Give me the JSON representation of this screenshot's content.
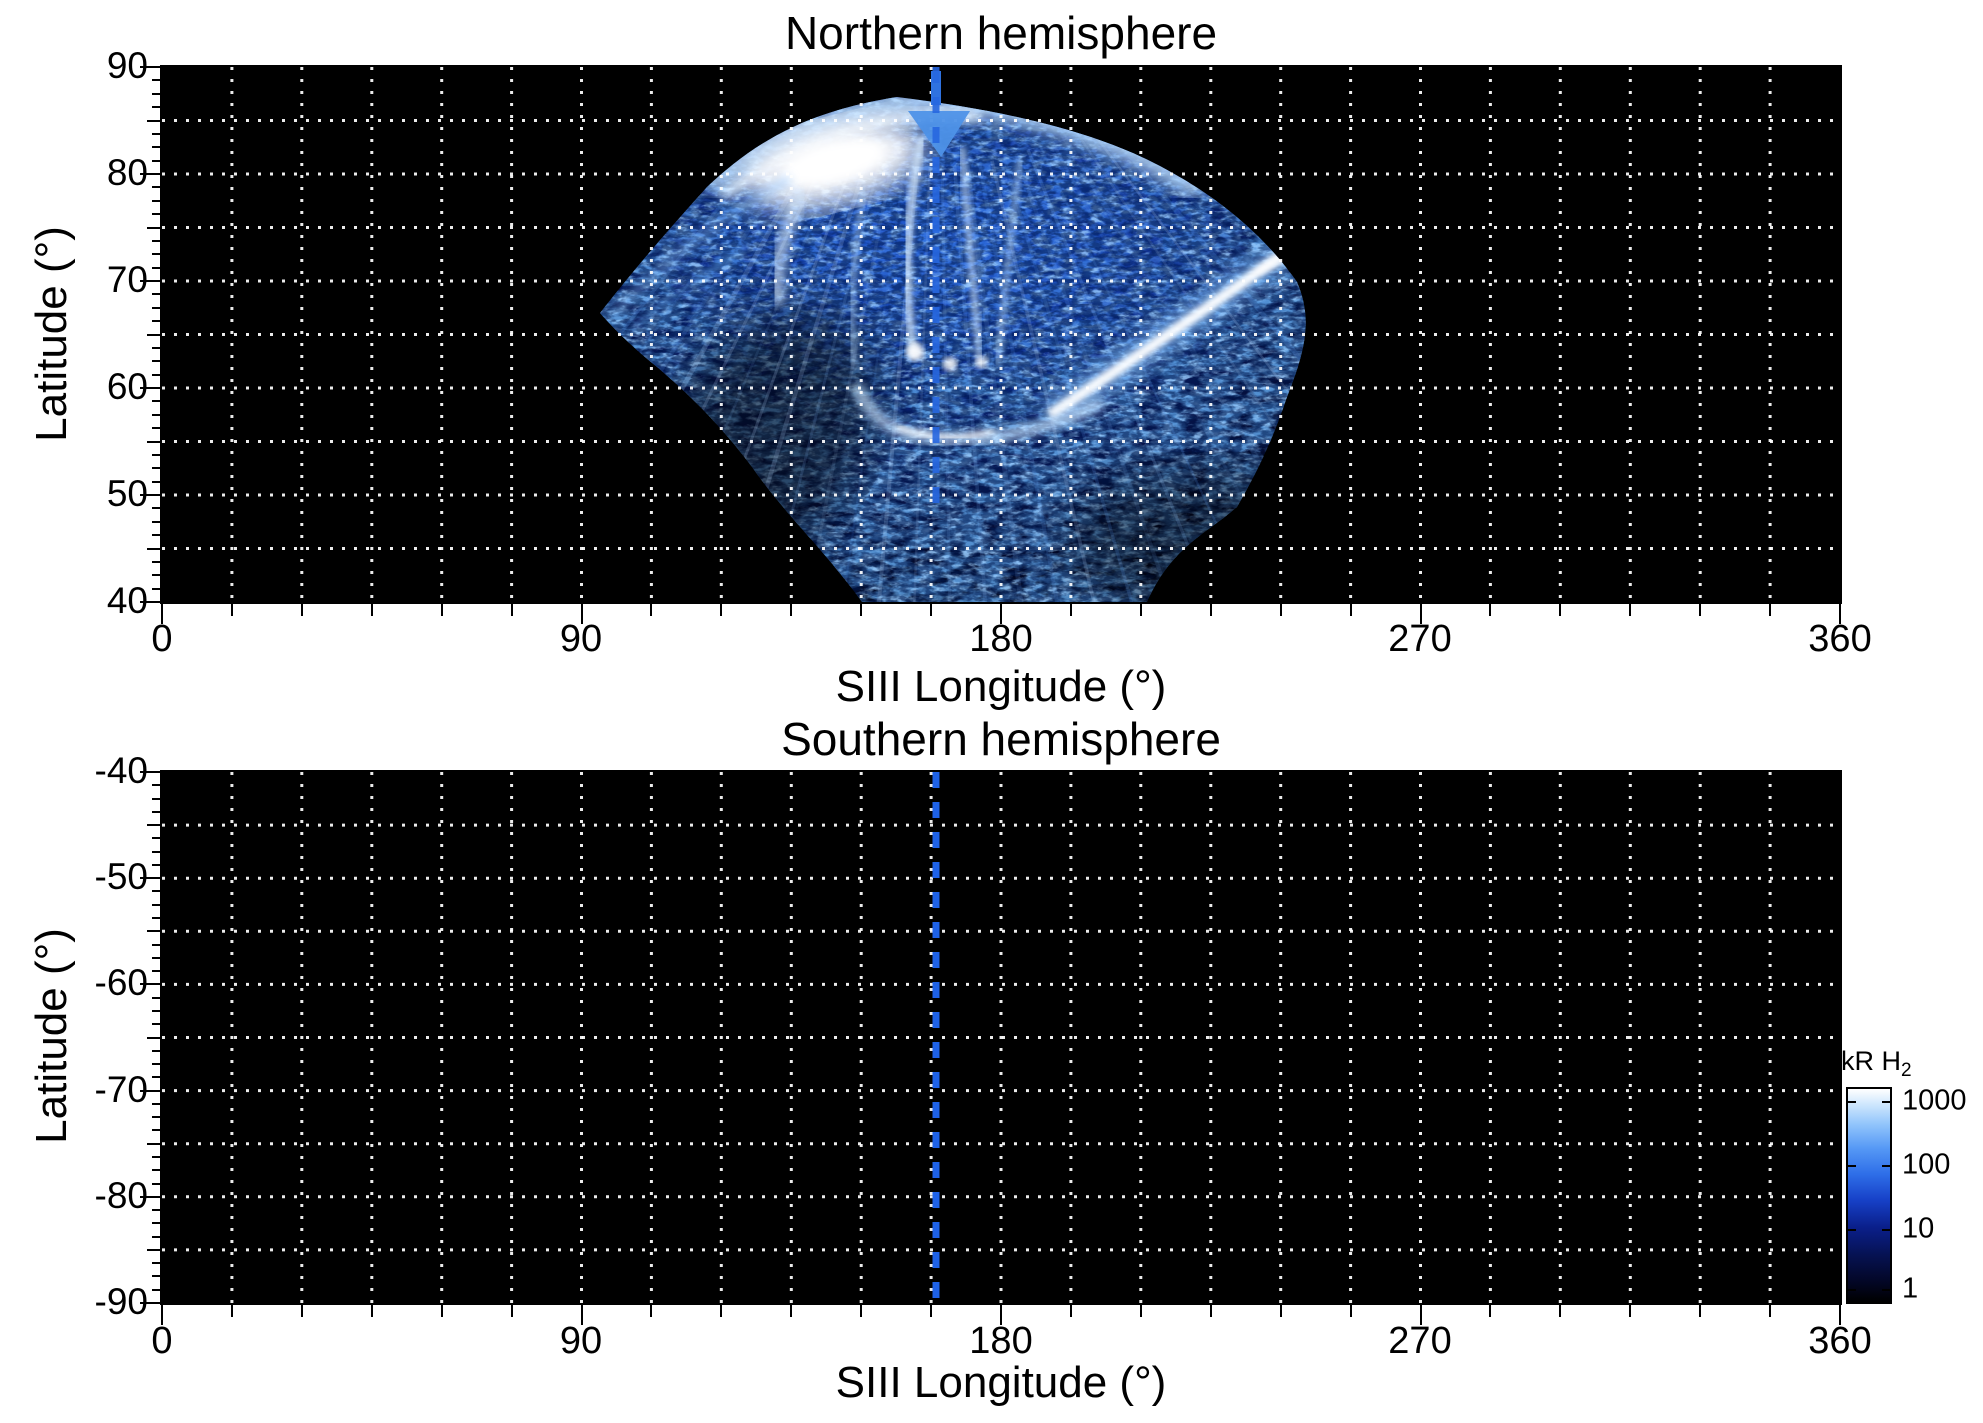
{
  "panels": {
    "north": {
      "title": "Northern hemisphere",
      "xlabel": "SIII Longitude (°)",
      "ylabel": "Latitude (°)",
      "x_tick_labels": [
        "0",
        "90",
        "180",
        "270",
        "360"
      ],
      "y_tick_labels": [
        "90",
        "80",
        "70",
        "60",
        "50",
        "40"
      ]
    },
    "south": {
      "title": "Southern hemisphere",
      "xlabel": "SIII Longitude (°)",
      "ylabel": "Latitude (°)",
      "x_tick_labels": [
        "0",
        "90",
        "180",
        "270",
        "360"
      ],
      "y_tick_labels": [
        "-40",
        "-50",
        "-60",
        "-70",
        "-80",
        "-90"
      ]
    }
  },
  "colorbar": {
    "title": "kR H",
    "title_sub": "2",
    "tick_labels": [
      "1000",
      "100",
      "10",
      "1"
    ]
  },
  "chart_data": [
    {
      "type": "heatmap",
      "title": "Northern hemisphere",
      "xlabel": "SIII Longitude (°)",
      "ylabel": "Latitude (°)",
      "xlim": [
        0,
        360
      ],
      "ylim": [
        40,
        90
      ],
      "x_tick_values": [
        0,
        90,
        180,
        270,
        360
      ],
      "y_tick_values": [
        90,
        80,
        70,
        60,
        50,
        40
      ],
      "x_grid_step_deg": 15,
      "y_grid_step_deg": 5,
      "grid": "white dotted on black background",
      "background_value_kR": 0,
      "reference_longitude_deg": 166,
      "reference_marker": "blue dashed vertical line with funnel-shaped marker at top edge near latitude 88-85",
      "features": [
        {
          "name": "auroral emission fan (patchy blue)",
          "lon_range": [
            92,
            248
          ],
          "lat_range": [
            40,
            87
          ],
          "intensity_kR": "1-100"
        },
        {
          "name": "bright polar emission patch (saturated white)",
          "lon": 145,
          "lat": 82,
          "intensity_kR": 1000
        },
        {
          "name": "main oval bright band",
          "lon_range": [
            120,
            222
          ],
          "lat_range": [
            78,
            86
          ],
          "intensity_kR": 300
        },
        {
          "name": "bright arc segment (white streak)",
          "lon_start": 192,
          "lat_start": 60,
          "lon_end": 242,
          "lat_end": 73,
          "intensity_kR": 1000
        },
        {
          "name": "central descending streaks near reference longitude",
          "lon_range": [
            158,
            186
          ],
          "lat_range": [
            55,
            84
          ],
          "intensity_kR": 100
        },
        {
          "name": "bright knots",
          "lons": [
            159,
            167,
            174
          ],
          "lat": 62,
          "intensity_kR": 500
        },
        {
          "name": "swirl / hook arc",
          "lon_range": [
            149,
            202
          ],
          "lat_range": [
            52,
            60
          ],
          "intensity_kR": 200
        },
        {
          "name": "diffuse patchy emission reaching low latitude",
          "lon_range": [
            150,
            212
          ],
          "lat_range": [
            40,
            55
          ],
          "intensity_kR": "1-30"
        }
      ],
      "colorbar": {
        "label": "kR H2",
        "scale": "log",
        "ticks": [
          1,
          10,
          100,
          1000
        ],
        "colors_low_to_high": [
          "#000000",
          "#061252",
          "#0a1f8a",
          "#1741c8",
          "#2e6ee8",
          "#8fc3fb",
          "#ffffff"
        ]
      }
    },
    {
      "type": "heatmap",
      "title": "Southern hemisphere",
      "xlabel": "SIII Longitude (°)",
      "ylabel": "Latitude (°)",
      "xlim": [
        0,
        360
      ],
      "ylim": [
        -90,
        -40
      ],
      "x_tick_values": [
        0,
        90,
        180,
        270,
        360
      ],
      "y_tick_values": [
        -40,
        -50,
        -60,
        -70,
        -80,
        -90
      ],
      "x_grid_step_deg": 15,
      "y_grid_step_deg": 5,
      "grid": "white dotted on black background",
      "background_value_kR": 0,
      "reference_longitude_deg": 166,
      "reference_marker": "blue dashed vertical line spanning full latitude range",
      "features": [
        {
          "name": "no emission / no data (uniform black)",
          "intensity_kR": 0
        }
      ]
    }
  ]
}
